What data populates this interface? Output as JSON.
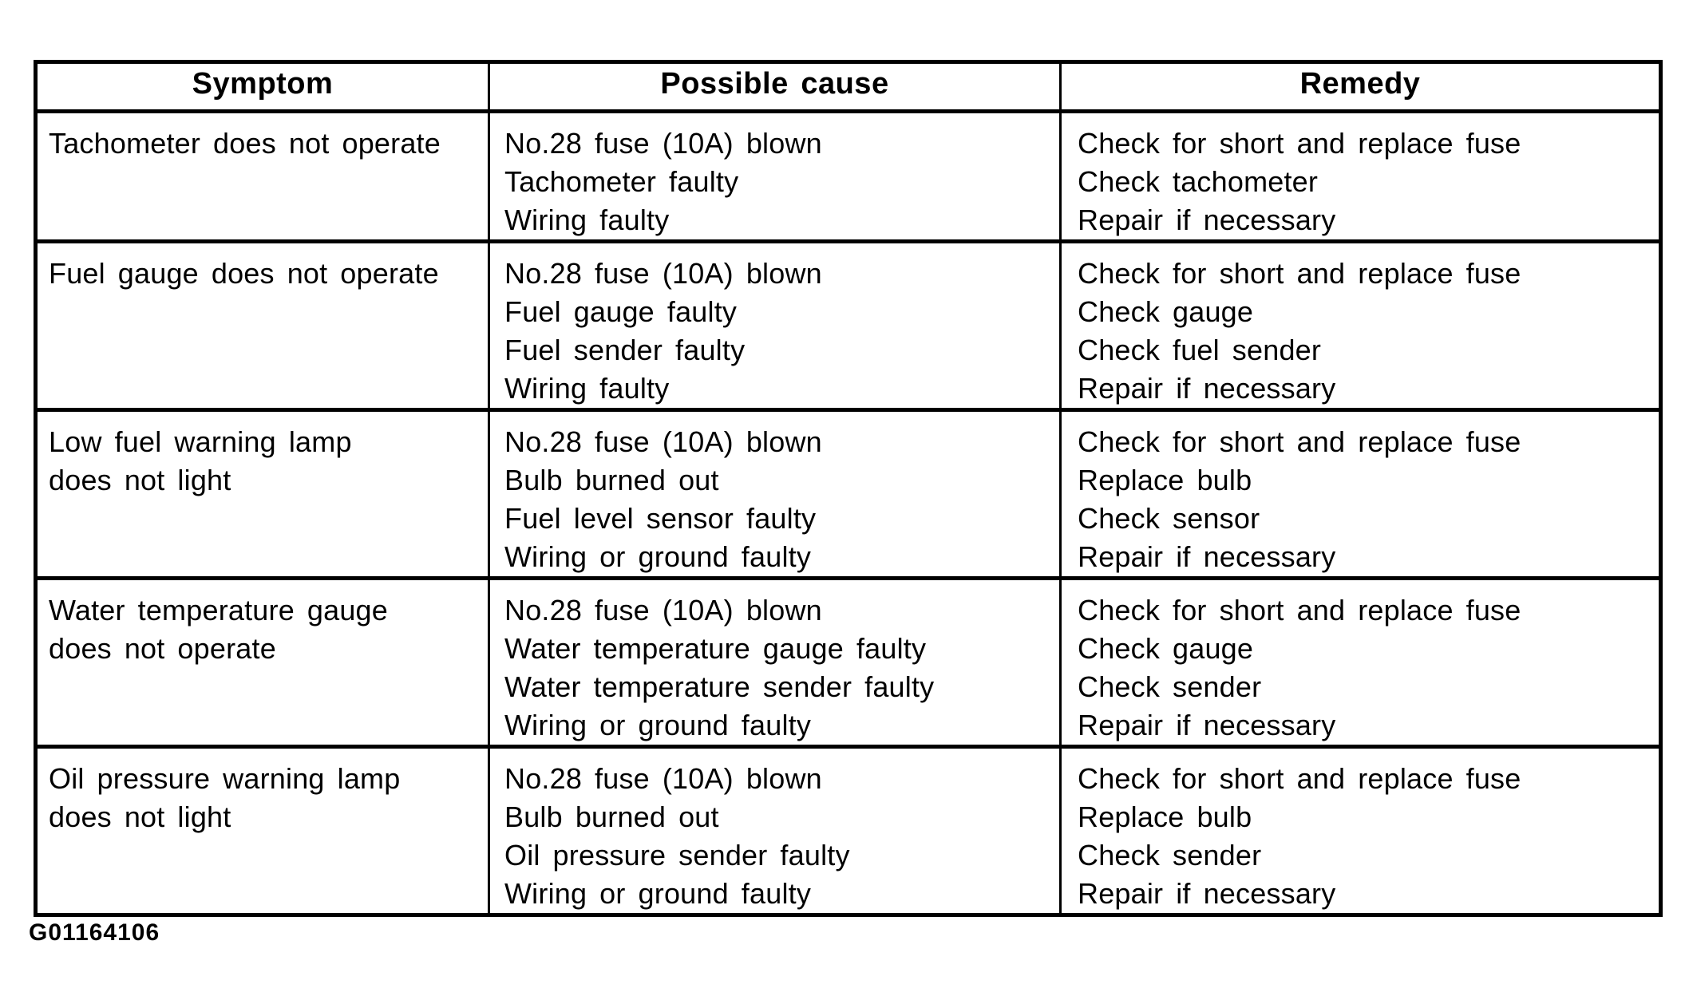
{
  "document": {
    "figure_id": "G01164106",
    "table": {
      "headers": [
        "Symptom",
        "Possible cause",
        "Remedy"
      ],
      "rows": [
        {
          "symptom": [
            "Tachometer does not operate"
          ],
          "causes": [
            "No.28 fuse (10A) blown",
            "Tachometer faulty",
            "Wiring faulty"
          ],
          "remedies": [
            "Check for short and replace fuse",
            "Check tachometer",
            "Repair if necessary"
          ]
        },
        {
          "symptom": [
            "Fuel gauge does not operate"
          ],
          "causes": [
            "No.28 fuse (10A) blown",
            "Fuel gauge faulty",
            "Fuel sender faulty",
            "Wiring faulty"
          ],
          "remedies": [
            "Check for short and replace fuse",
            "Check gauge",
            "Check fuel sender",
            "Repair if necessary"
          ]
        },
        {
          "symptom": [
            "Low fuel warning lamp",
            "does not light"
          ],
          "causes": [
            "No.28 fuse (10A) blown",
            "Bulb burned out",
            "Fuel level sensor faulty",
            "Wiring or ground faulty"
          ],
          "remedies": [
            "Check for short and replace fuse",
            "Replace bulb",
            "Check sensor",
            "Repair if necessary"
          ]
        },
        {
          "symptom": [
            "Water temperature gauge",
            "does not operate"
          ],
          "causes": [
            "No.28 fuse (10A) blown",
            "Water temperature gauge faulty",
            "Water temperature sender faulty",
            "Wiring or ground faulty"
          ],
          "remedies": [
            "Check for short and replace fuse",
            "Check gauge",
            "Check sender",
            "Repair if necessary"
          ]
        },
        {
          "symptom": [
            "Oil pressure warning lamp",
            "does not light"
          ],
          "causes": [
            "No.28 fuse (10A) blown",
            "Bulb burned out",
            "Oil pressure sender faulty",
            "Wiring or ground faulty"
          ],
          "remedies": [
            "Check for short and replace fuse",
            "Replace bulb",
            "Check sender",
            "Repair if necessary"
          ]
        }
      ]
    }
  },
  "colors": {
    "ink": "#000000",
    "paper": "#ffffff"
  }
}
